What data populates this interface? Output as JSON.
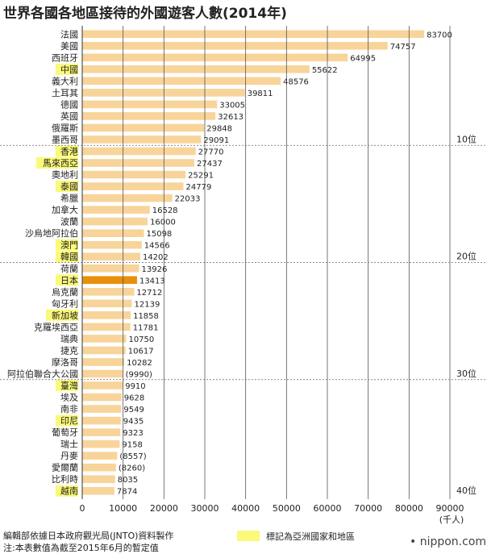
{
  "chart_data": {
    "type": "bar",
    "orientation": "horizontal",
    "title": "世界各國各地區接待的外國遊客人數(2014年)",
    "unit": "(千人)",
    "xlim": [
      0,
      90000
    ],
    "x_ticks": [
      "0",
      "10000",
      "20000",
      "30000",
      "40000",
      "50000",
      "60000",
      "70000",
      "80000",
      "90000"
    ],
    "grid": true,
    "rank_markers": [
      {
        "after": 10,
        "label": "10位"
      },
      {
        "after": 20,
        "label": "20位"
      },
      {
        "after": 30,
        "label": "30位"
      },
      {
        "after": 40,
        "label": "40位"
      }
    ],
    "colors": {
      "bar": "#f8d49a",
      "japan": "#e8900a",
      "asia_highlight": "#fbf97a",
      "grid": "#555555"
    },
    "bars": [
      {
        "name": "法國",
        "value": 83700,
        "label": "83700",
        "asia": false
      },
      {
        "name": "美國",
        "value": 74757,
        "label": "74757",
        "asia": false
      },
      {
        "name": "西班牙",
        "value": 64995,
        "label": "64995",
        "asia": false
      },
      {
        "name": "中國",
        "value": 55622,
        "label": "55622",
        "asia": true
      },
      {
        "name": "義大利",
        "value": 48576,
        "label": "48576",
        "asia": false
      },
      {
        "name": "土耳其",
        "value": 39811,
        "label": "39811",
        "asia": false
      },
      {
        "name": "德國",
        "value": 33005,
        "label": "33005",
        "asia": false
      },
      {
        "name": "英國",
        "value": 32613,
        "label": "32613",
        "asia": false
      },
      {
        "name": "俄羅斯",
        "value": 29848,
        "label": "29848",
        "asia": false
      },
      {
        "name": "墨西哥",
        "value": 29091,
        "label": "29091",
        "asia": false
      },
      {
        "name": "香港",
        "value": 27770,
        "label": "27770",
        "asia": true
      },
      {
        "name": "馬來西亞",
        "value": 27437,
        "label": "27437",
        "asia": true
      },
      {
        "name": "奧地利",
        "value": 25291,
        "label": "25291",
        "asia": false
      },
      {
        "name": "泰國",
        "value": 24779,
        "label": "24779",
        "asia": true
      },
      {
        "name": "希臘",
        "value": 22033,
        "label": "22033",
        "asia": false
      },
      {
        "name": "加拿大",
        "value": 16528,
        "label": "16528",
        "asia": false
      },
      {
        "name": "波蘭",
        "value": 16000,
        "label": "16000",
        "asia": false
      },
      {
        "name": "沙烏地阿拉伯",
        "value": 15098,
        "label": "15098",
        "asia": false
      },
      {
        "name": "澳門",
        "value": 14566,
        "label": "14566",
        "asia": true
      },
      {
        "name": "韓國",
        "value": 14202,
        "label": "14202",
        "asia": true
      },
      {
        "name": "荷蘭",
        "value": 13926,
        "label": "13926",
        "asia": false
      },
      {
        "name": "日本",
        "value": 13413,
        "label": "13413",
        "asia": true,
        "japan": true
      },
      {
        "name": "烏克蘭",
        "value": 12712,
        "label": "12712",
        "asia": false
      },
      {
        "name": "匈牙利",
        "value": 12139,
        "label": "12139",
        "asia": false
      },
      {
        "name": "新加坡",
        "value": 11858,
        "label": "11858",
        "asia": true
      },
      {
        "name": "克羅埃西亞",
        "value": 11781,
        "label": "11781",
        "asia": false
      },
      {
        "name": "瑞典",
        "value": 10750,
        "label": "10750",
        "asia": false
      },
      {
        "name": "捷克",
        "value": 10617,
        "label": "10617",
        "asia": false
      },
      {
        "name": "摩洛哥",
        "value": 10282,
        "label": "10282",
        "asia": false
      },
      {
        "name": "阿拉伯聯合大公國",
        "value": 9990,
        "label": "(9990)",
        "asia": false
      },
      {
        "name": "臺灣",
        "value": 9910,
        "label": "9910",
        "asia": true
      },
      {
        "name": "埃及",
        "value": 9628,
        "label": "9628",
        "asia": false
      },
      {
        "name": "南非",
        "value": 9549,
        "label": "9549",
        "asia": false
      },
      {
        "name": "印尼",
        "value": 9435,
        "label": "9435",
        "asia": true
      },
      {
        "name": "葡萄牙",
        "value": 9323,
        "label": "9323",
        "asia": false
      },
      {
        "name": "瑞士",
        "value": 9158,
        "label": "9158",
        "asia": false
      },
      {
        "name": "丹麥",
        "value": 8557,
        "label": "(8557)",
        "asia": false
      },
      {
        "name": "愛爾蘭",
        "value": 8260,
        "label": "(8260)",
        "asia": false
      },
      {
        "name": "比利時",
        "value": 8035,
        "label": "8035",
        "asia": false
      },
      {
        "name": "越南",
        "value": 7874,
        "label": "7874",
        "asia": true
      }
    ]
  },
  "footer": {
    "source": "編輯部依據日本政府觀光局(JNTO)資料製作",
    "note": "注:本表數值為截至2015年6月的暫定值",
    "legend_label": "標記為亞洲國家和地區",
    "brand": "• nippon.com"
  }
}
